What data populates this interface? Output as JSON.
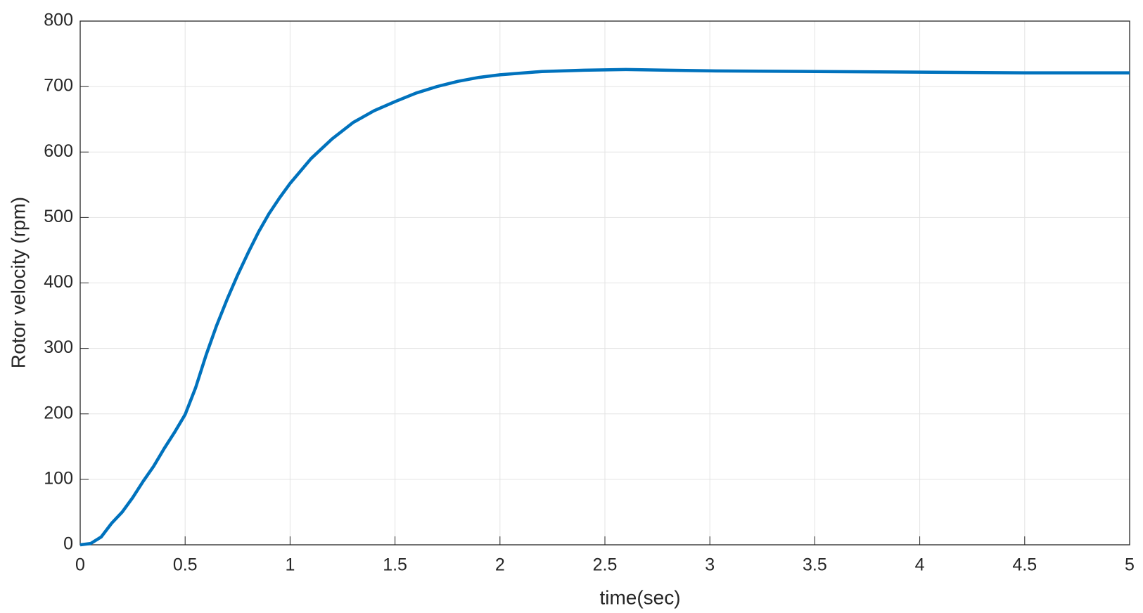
{
  "chart_data": {
    "type": "line",
    "xlabel": "time(sec)",
    "ylabel": "Rotor velocity (rpm)",
    "x": [
      0,
      0.05,
      0.1,
      0.15,
      0.2,
      0.25,
      0.3,
      0.35,
      0.4,
      0.45,
      0.5,
      0.55,
      0.6,
      0.65,
      0.7,
      0.75,
      0.8,
      0.85,
      0.9,
      0.95,
      1.0,
      1.1,
      1.2,
      1.3,
      1.4,
      1.5,
      1.6,
      1.7,
      1.8,
      1.9,
      2.0,
      2.2,
      2.4,
      2.6,
      2.8,
      3.0,
      3.5,
      4.0,
      4.5,
      5.0
    ],
    "series": [
      {
        "color": "#0072bd",
        "values": [
          0,
          2,
          12,
          33,
          50,
          72,
          97,
          120,
          147,
          172,
          199,
          240,
          290,
          335,
          375,
          412,
          446,
          478,
          506,
          530,
          552,
          590,
          620,
          645,
          663,
          677,
          690,
          700,
          708,
          714,
          718,
          723,
          725,
          726,
          725,
          724,
          723,
          722,
          721,
          721
        ]
      }
    ],
    "xlim": [
      0,
      5
    ],
    "xticks": [
      0,
      0.5,
      1,
      1.5,
      2,
      2.5,
      3,
      3.5,
      4,
      4.5,
      5
    ],
    "ylim": [
      0,
      800
    ],
    "yticks": [
      0,
      100,
      200,
      300,
      400,
      500,
      600,
      700,
      800
    ],
    "grid": true
  }
}
